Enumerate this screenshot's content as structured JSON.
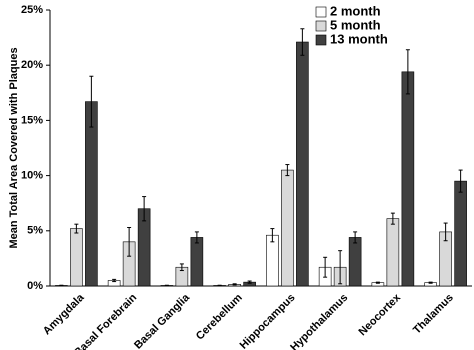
{
  "chart_data": {
    "type": "bar",
    "y_label": "Mean Total Area Covered with Plaques",
    "categories": [
      "Amygdala",
      "Basal Forebrain",
      "Basal Ganglia",
      "Cerebellum",
      "Hippocampus",
      "Hypothalamus",
      "Neocortex",
      "Thalamus"
    ],
    "series": [
      {
        "name": "2 month",
        "color": "#ffffff",
        "values": [
          0.05,
          0.5,
          0.05,
          0.05,
          4.6,
          1.7,
          0.3,
          0.3
        ],
        "errors": [
          0.02,
          0.1,
          0.02,
          0.02,
          0.6,
          0.9,
          0.05,
          0.05
        ]
      },
      {
        "name": "5 month",
        "color": "#d9d9d9",
        "values": [
          5.2,
          4.0,
          1.7,
          0.15,
          10.5,
          1.7,
          6.1,
          4.9
        ],
        "errors": [
          0.4,
          1.3,
          0.3,
          0.05,
          0.5,
          1.5,
          0.5,
          0.8
        ]
      },
      {
        "name": "13 month",
        "color": "#404040",
        "values": [
          16.7,
          7.0,
          4.4,
          0.35,
          22.1,
          4.4,
          19.4,
          9.5
        ],
        "errors": [
          2.3,
          1.1,
          0.5,
          0.1,
          1.2,
          0.5,
          2.0,
          1.0
        ]
      }
    ],
    "ylim": [
      0,
      25
    ],
    "yticks": [
      {
        "value": 0,
        "label": "0%"
      },
      {
        "value": 5,
        "label": "5%"
      },
      {
        "value": 10,
        "label": "10%"
      },
      {
        "value": 15,
        "label": "15%"
      },
      {
        "value": 20,
        "label": "20%"
      },
      {
        "value": 25,
        "label": "25%"
      }
    ],
    "legend": "upper right"
  }
}
